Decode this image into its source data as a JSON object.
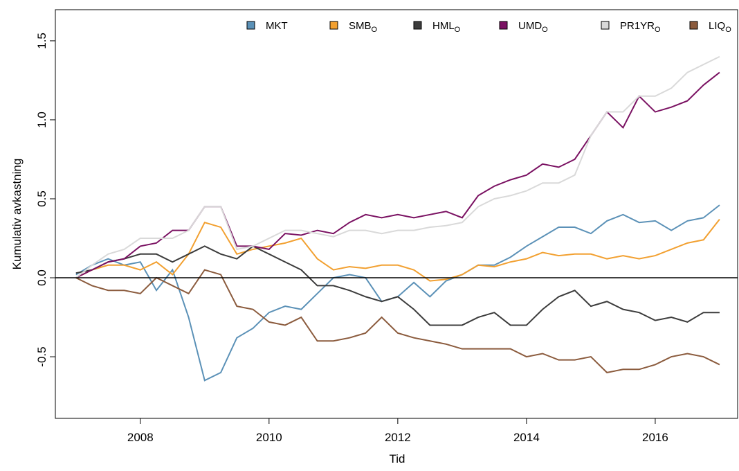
{
  "chart_data": {
    "type": "line",
    "xlabel": "Tid",
    "ylabel": "Kumulativ avkastning",
    "x": [
      2007,
      2007.25,
      2007.5,
      2007.75,
      2008,
      2008.25,
      2008.5,
      2008.75,
      2009,
      2009.25,
      2009.5,
      2009.75,
      2010,
      2010.25,
      2010.5,
      2010.75,
      2011,
      2011.25,
      2011.5,
      2011.75,
      2012,
      2012.25,
      2012.5,
      2012.75,
      2013,
      2013.25,
      2013.5,
      2013.75,
      2014,
      2014.25,
      2014.5,
      2014.75,
      2015,
      2015.25,
      2015.5,
      2015.75,
      2016,
      2016.25,
      2016.5,
      2016.75,
      2017
    ],
    "series": [
      {
        "name": "MKT",
        "color": "#5b91b7",
        "values": [
          0.02,
          0.08,
          0.12,
          0.08,
          0.1,
          -0.08,
          0.05,
          -0.25,
          -0.65,
          -0.6,
          -0.38,
          -0.32,
          -0.22,
          -0.18,
          -0.2,
          -0.1,
          0.0,
          0.02,
          0.0,
          -0.15,
          -0.12,
          -0.03,
          -0.12,
          -0.02,
          0.02,
          0.08,
          0.08,
          0.13,
          0.2,
          0.26,
          0.32,
          0.32,
          0.28,
          0.36,
          0.4,
          0.35,
          0.36,
          0.3,
          0.36,
          0.38,
          0.46
        ]
      },
      {
        "name": "SMB",
        "sub": "O",
        "color": "#f2a030",
        "values": [
          0.0,
          0.05,
          0.08,
          0.08,
          0.05,
          0.1,
          0.02,
          0.15,
          0.35,
          0.32,
          0.15,
          0.18,
          0.2,
          0.22,
          0.25,
          0.12,
          0.05,
          0.07,
          0.06,
          0.08,
          0.08,
          0.05,
          -0.02,
          -0.01,
          0.02,
          0.08,
          0.07,
          0.1,
          0.12,
          0.16,
          0.14,
          0.15,
          0.15,
          0.12,
          0.14,
          0.12,
          0.14,
          0.18,
          0.22,
          0.24,
          0.37
        ]
      },
      {
        "name": "HML",
        "sub": "O",
        "color": "#3c3c3c",
        "values": [
          0.03,
          0.05,
          0.1,
          0.12,
          0.15,
          0.15,
          0.1,
          0.15,
          0.2,
          0.15,
          0.12,
          0.2,
          0.15,
          0.1,
          0.05,
          -0.05,
          -0.05,
          -0.08,
          -0.12,
          -0.15,
          -0.12,
          -0.2,
          -0.3,
          -0.3,
          -0.3,
          -0.25,
          -0.22,
          -0.3,
          -0.3,
          -0.2,
          -0.12,
          -0.08,
          -0.18,
          -0.15,
          -0.2,
          -0.22,
          -0.27,
          -0.25,
          -0.28,
          -0.22,
          -0.22
        ]
      },
      {
        "name": "UMD",
        "sub": "O",
        "color": "#7a1162",
        "values": [
          0.0,
          0.05,
          0.1,
          0.12,
          0.2,
          0.22,
          0.3,
          0.3,
          0.45,
          0.45,
          0.2,
          0.2,
          0.18,
          0.28,
          0.27,
          0.3,
          0.28,
          0.35,
          0.4,
          0.38,
          0.4,
          0.38,
          0.4,
          0.42,
          0.38,
          0.52,
          0.58,
          0.62,
          0.65,
          0.72,
          0.7,
          0.75,
          0.9,
          1.05,
          0.95,
          1.15,
          1.05,
          1.08,
          1.12,
          1.22,
          1.3
        ]
      },
      {
        "name": "PR1YR",
        "sub": "O",
        "color": "#d9d9d9",
        "values": [
          0.0,
          0.08,
          0.15,
          0.18,
          0.25,
          0.25,
          0.25,
          0.3,
          0.45,
          0.45,
          0.18,
          0.2,
          0.25,
          0.3,
          0.3,
          0.28,
          0.26,
          0.3,
          0.3,
          0.28,
          0.3,
          0.3,
          0.32,
          0.33,
          0.35,
          0.45,
          0.5,
          0.52,
          0.55,
          0.6,
          0.6,
          0.65,
          0.9,
          1.05,
          1.05,
          1.15,
          1.15,
          1.2,
          1.3,
          1.35,
          1.4
        ]
      },
      {
        "name": "LIQ",
        "sub": "O",
        "color": "#8b5b3d",
        "values": [
          0.0,
          -0.05,
          -0.08,
          -0.08,
          -0.1,
          0.0,
          -0.05,
          -0.1,
          0.05,
          0.02,
          -0.18,
          -0.2,
          -0.28,
          -0.3,
          -0.25,
          -0.4,
          -0.4,
          -0.38,
          -0.35,
          -0.25,
          -0.35,
          -0.38,
          -0.4,
          -0.42,
          -0.45,
          -0.45,
          -0.45,
          -0.45,
          -0.5,
          -0.48,
          -0.52,
          -0.52,
          -0.5,
          -0.6,
          -0.58,
          -0.58,
          -0.55,
          -0.5,
          -0.48,
          -0.5,
          -0.55
        ]
      }
    ],
    "hline": 0,
    "xlim": [
      2006.68,
      2017.28
    ],
    "xticks": [
      2008,
      2010,
      2012,
      2014,
      2016
    ],
    "ylim": [
      -0.89,
      1.697
    ],
    "yticks": [
      -0.5,
      {
        "value": 0,
        "label": "0.0"
      },
      0.5,
      {
        "value": 1,
        "label": "1.0"
      },
      1.5
    ],
    "legend": "top-right"
  }
}
